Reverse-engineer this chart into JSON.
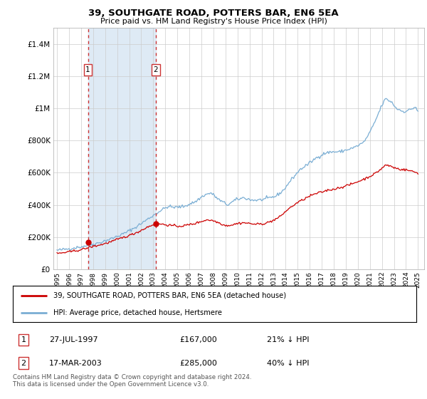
{
  "title": "39, SOUTHGATE ROAD, POTTERS BAR, EN6 5EA",
  "subtitle": "Price paid vs. HM Land Registry's House Price Index (HPI)",
  "legend_line1": "39, SOUTHGATE ROAD, POTTERS BAR, EN6 5EA (detached house)",
  "legend_line2": "HPI: Average price, detached house, Hertsmere",
  "annotation1_label": "1",
  "annotation1_date": "27-JUL-1997",
  "annotation1_price": "£167,000",
  "annotation1_hpi": "21% ↓ HPI",
  "annotation1_year": 1997.57,
  "annotation1_value": 167000,
  "annotation2_label": "2",
  "annotation2_date": "17-MAR-2003",
  "annotation2_price": "£285,000",
  "annotation2_hpi": "40% ↓ HPI",
  "annotation2_year": 2003.21,
  "annotation2_value": 285000,
  "hpi_color": "#7aaed4",
  "price_color": "#cc0000",
  "dashed_line_color": "#cc3333",
  "shade_color": "#deeaf5",
  "grid_color": "#cccccc",
  "footer_text": "Contains HM Land Registry data © Crown copyright and database right 2024.\nThis data is licensed under the Open Government Licence v3.0.",
  "ylim": [
    0,
    1500000
  ],
  "yticks": [
    0,
    200000,
    400000,
    600000,
    800000,
    1000000,
    1200000,
    1400000
  ],
  "ytick_labels": [
    "£0",
    "£200K",
    "£400K",
    "£600K",
    "£800K",
    "£1M",
    "£1.2M",
    "£1.4M"
  ],
  "xlim_start": 1994.7,
  "xlim_end": 2025.5
}
